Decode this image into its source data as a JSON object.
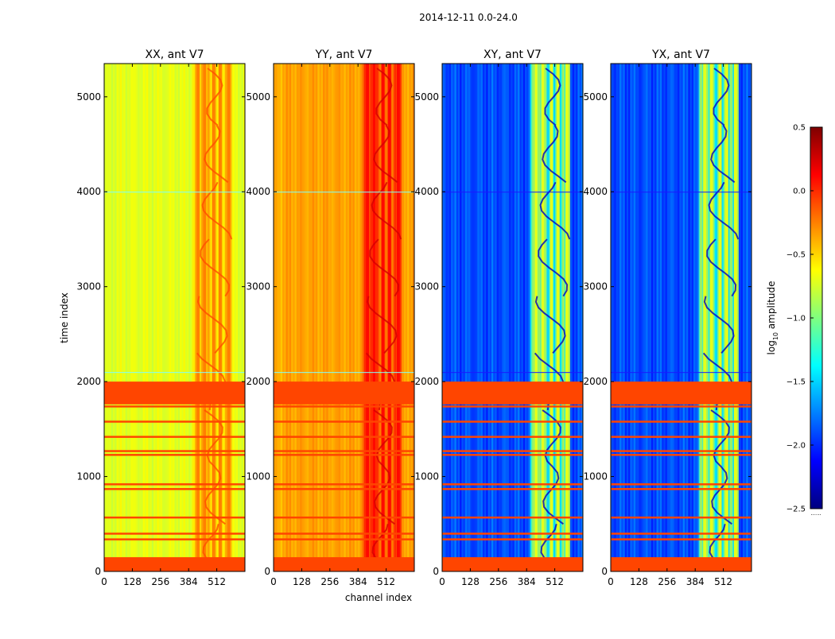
{
  "suptitle": "2014-12-11 0.0-24.0",
  "xlabel": "channel index",
  "ylabel": "time index",
  "colorbar": {
    "label": "log",
    "label_sub": "10",
    "label_rest": " amplitude",
    "range": [
      -2.5,
      0.5
    ],
    "ticks": [
      "0.5",
      "0.0",
      "−0.5",
      "−1.0",
      "−1.5",
      "−2.0",
      "−2.5"
    ],
    "tick_values": [
      0.5,
      0.0,
      -0.5,
      -1.0,
      -1.5,
      -2.0,
      -2.5
    ],
    "footer": "......"
  },
  "chart_data": {
    "type": "heatmap",
    "title": "2014-12-11 0.0-24.0",
    "xlabel": "channel index",
    "ylabel": "time index",
    "xlim": [
      0,
      640
    ],
    "ylim": [
      0,
      5350
    ],
    "colormap": "jet",
    "value_range": [
      -2.5,
      0.5
    ],
    "value_label": "log10 amplitude",
    "panels": [
      {
        "title": "XX, ant V7",
        "background_level": -0.7
      },
      {
        "title": "YY, ant V7",
        "background_level": -0.35
      },
      {
        "title": "XY, ant V7",
        "background_level": -1.9
      },
      {
        "title": "YX, ant V7",
        "background_level": -1.9
      }
    ],
    "x_ticks": [
      "0",
      "128",
      "256",
      "384",
      "512"
    ],
    "x_tick_values": [
      0,
      128,
      256,
      384,
      512
    ],
    "y_ticks": [
      "0",
      "1000",
      "2000",
      "3000",
      "4000",
      "5000"
    ],
    "y_tick_values": [
      0,
      1000,
      2000,
      3000,
      4000,
      5000
    ],
    "flagged_time_ranges": [
      [
        0,
        150
      ],
      [
        1760,
        2000
      ]
    ],
    "flag_lines": [
      340,
      400,
      570,
      870,
      920,
      1230,
      1270,
      1420,
      1580,
      1740
    ],
    "feature_channels": [
      420,
      450,
      490,
      520,
      560
    ]
  }
}
